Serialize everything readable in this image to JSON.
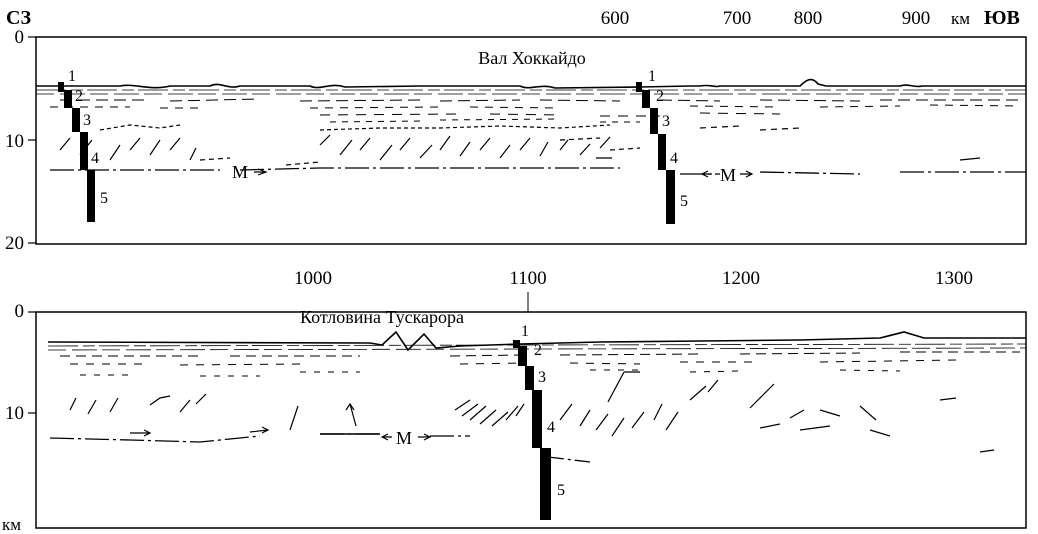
{
  "header": {
    "left_label": "СЗ",
    "right_unit": "км",
    "right_label": "ЮВ"
  },
  "top_profile": {
    "title": "Вал Хоккайдо",
    "x_ticks": [
      "600",
      "700",
      "800",
      "900"
    ],
    "y_ticks": [
      "0",
      "10",
      "20"
    ],
    "moho_label_1": "M",
    "moho_label_2": "M",
    "column_1_layers": [
      "1",
      "2",
      "3",
      "4",
      "5"
    ],
    "column_2_layers": [
      "1",
      "2",
      "3",
      "4",
      "5"
    ]
  },
  "bottom_profile": {
    "title": "Котловина Тускарора",
    "x_ticks": [
      "1000",
      "1100",
      "1200",
      "1300"
    ],
    "y_ticks": [
      "0",
      "10"
    ],
    "y_unit": "км",
    "moho_label": "M",
    "column_layers": [
      "1",
      "2",
      "3",
      "4",
      "5"
    ]
  }
}
